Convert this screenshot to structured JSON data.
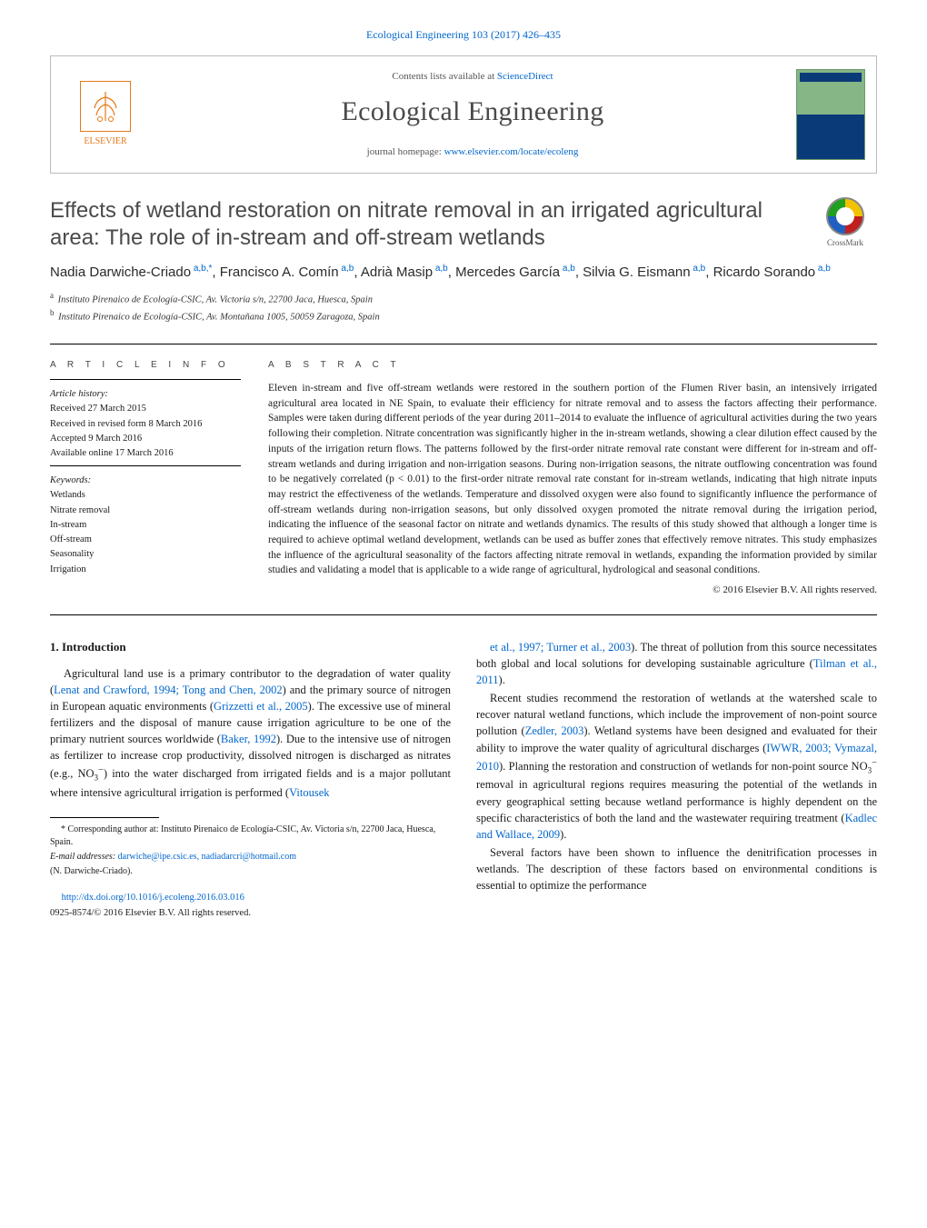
{
  "header": {
    "journal_ref_line": "Ecological Engineering 103 (2017) 426–435",
    "contents_line_prefix": "Contents lists available at ",
    "contents_link": "ScienceDirect",
    "journal_title": "Ecological Engineering",
    "homepage_prefix": "journal homepage: ",
    "homepage_url": "www.elsevier.com/locate/ecoleng",
    "publisher_logo_text": "ELSEVIER"
  },
  "article": {
    "title": "Effects of wetland restoration on nitrate removal in an irrigated agricultural area: The role of in-stream and off-stream wetlands",
    "crossmark_label": "CrossMark",
    "authors_html": "Nadia Darwiche-Criado|a,b,*|, Francisco A. Comín|a,b|, Adrià Masip|a,b|, Mercedes García|a,b|, Silvia G. Eismann|a,b|, Ricardo Sorando|a,b|",
    "affiliations": [
      {
        "key": "a",
        "text": "Instituto Pirenaico de Ecología-CSIC, Av. Victoria s/n, 22700 Jaca, Huesca, Spain"
      },
      {
        "key": "b",
        "text": "Instituto Pirenaico de Ecología-CSIC, Av. Montañana 1005, 50059 Zaragoza, Spain"
      }
    ]
  },
  "meta": {
    "article_info_label": "a r t i c l e    i n f o",
    "history_label": "Article history:",
    "history": [
      "Received 27 March 2015",
      "Received in revised form 8 March 2016",
      "Accepted 9 March 2016",
      "Available online 17 March 2016"
    ],
    "keywords_label": "Keywords:",
    "keywords": [
      "Wetlands",
      "Nitrate removal",
      "In-stream",
      "Off-stream",
      "Seasonality",
      "Irrigation"
    ]
  },
  "abstract": {
    "label": "a b s t r a c t",
    "text": "Eleven in-stream and five off-stream wetlands were restored in the southern portion of the Flumen River basin, an intensively irrigated agricultural area located in NE Spain, to evaluate their efficiency for nitrate removal and to assess the factors affecting their performance. Samples were taken during different periods of the year during 2011–2014 to evaluate the influence of agricultural activities during the two years following their completion. Nitrate concentration was significantly higher in the in-stream wetlands, showing a clear dilution effect caused by the inputs of the irrigation return flows. The patterns followed by the first-order nitrate removal rate constant were different for in-stream and off-stream wetlands and during irrigation and non-irrigation seasons. During non-irrigation seasons, the nitrate outflowing concentration was found to be negatively correlated (p < 0.01) to the first-order nitrate removal rate constant for in-stream wetlands, indicating that high nitrate inputs may restrict the effectiveness of the wetlands. Temperature and dissolved oxygen were also found to significantly influence the performance of off-stream wetlands during non-irrigation seasons, but only dissolved oxygen promoted the nitrate removal during the irrigation period, indicating the influence of the seasonal factor on nitrate and wetlands dynamics. The results of this study showed that although a longer time is required to achieve optimal wetland development, wetlands can be used as buffer zones that effectively remove nitrates. This study emphasizes the influence of the agricultural seasonality of the factors affecting nitrate removal in wetlands, expanding the information provided by similar studies and validating a model that is applicable to a wide range of agricultural, hydrological and seasonal conditions.",
    "copyright": "© 2016 Elsevier B.V. All rights reserved."
  },
  "body": {
    "section_heading": "1. Introduction",
    "paragraphs": [
      "Agricultural land use is a primary contributor to the degradation of water quality (<a class='ref'>Lenat and Crawford, 1994; Tong and Chen, 2002</a>) and the primary source of nitrogen in European aquatic environments (<a class='ref'>Grizzetti et al., 2005</a>). The excessive use of mineral fertilizers and the disposal of manure cause irrigation agriculture to be one of the primary nutrient sources worldwide (<a class='ref'>Baker, 1992</a>). Due to the intensive use of nitrogen as fertilizer to increase crop productivity, dissolved nitrogen is discharged as nitrates (e.g., NO<sub>3</sub><sup>−</sup>) into the water discharged from irrigated fields and is a major pollutant where intensive agricultural irrigation is performed (<a class='ref'>Vitousek</a>",
      "<a class='ref'>et al., 1997; Turner et al., 2003</a>). The threat of pollution from this source necessitates both global and local solutions for developing sustainable agriculture (<a class='ref'>Tilman et al., 2011</a>).",
      "Recent studies recommend the restoration of wetlands at the watershed scale to recover natural wetland functions, which include the improvement of non-point source pollution (<a class='ref'>Zedler, 2003</a>). Wetland systems have been designed and evaluated for their ability to improve the water quality of agricultural discharges (<a class='ref'>IWWR, 2003; Vymazal, 2010</a>). Planning the restoration and construction of wetlands for non-point source NO<sub>3</sub><sup>−</sup> removal in agricultural regions requires measuring the potential of the wetlands in every geographical setting because wetland performance is highly dependent on the specific characteristics of both the land and the wastewater requiring treatment (<a class='ref'>Kadlec and Wallace, 2009</a>).",
      "Several factors have been shown to influence the denitrification processes in wetlands. The description of these factors based on environmental conditions is essential to optimize the performance"
    ]
  },
  "footnotes": {
    "corresponding_prefix": "* Corresponding author at: ",
    "corresponding_addr": "Instituto Pirenaico de Ecología-CSIC, Av. Victoria s/n, 22700 Jaca, Huesca, Spain.",
    "email_label": "E-mail addresses: ",
    "emails": "darwiche@ipe.csic.es, nadiadarcri@hotmail.com",
    "email_name": "(N. Darwiche-Criado)."
  },
  "footer": {
    "doi": "http://dx.doi.org/10.1016/j.ecoleng.2016.03.016",
    "issn_line": "0925-8574/© 2016 Elsevier B.V. All rights reserved."
  },
  "colors": {
    "link": "#0066cc",
    "publisher_orange": "#e67817",
    "title_gray": "#4a4a4a",
    "rule": "#000000",
    "border": "#bbbbbb"
  }
}
